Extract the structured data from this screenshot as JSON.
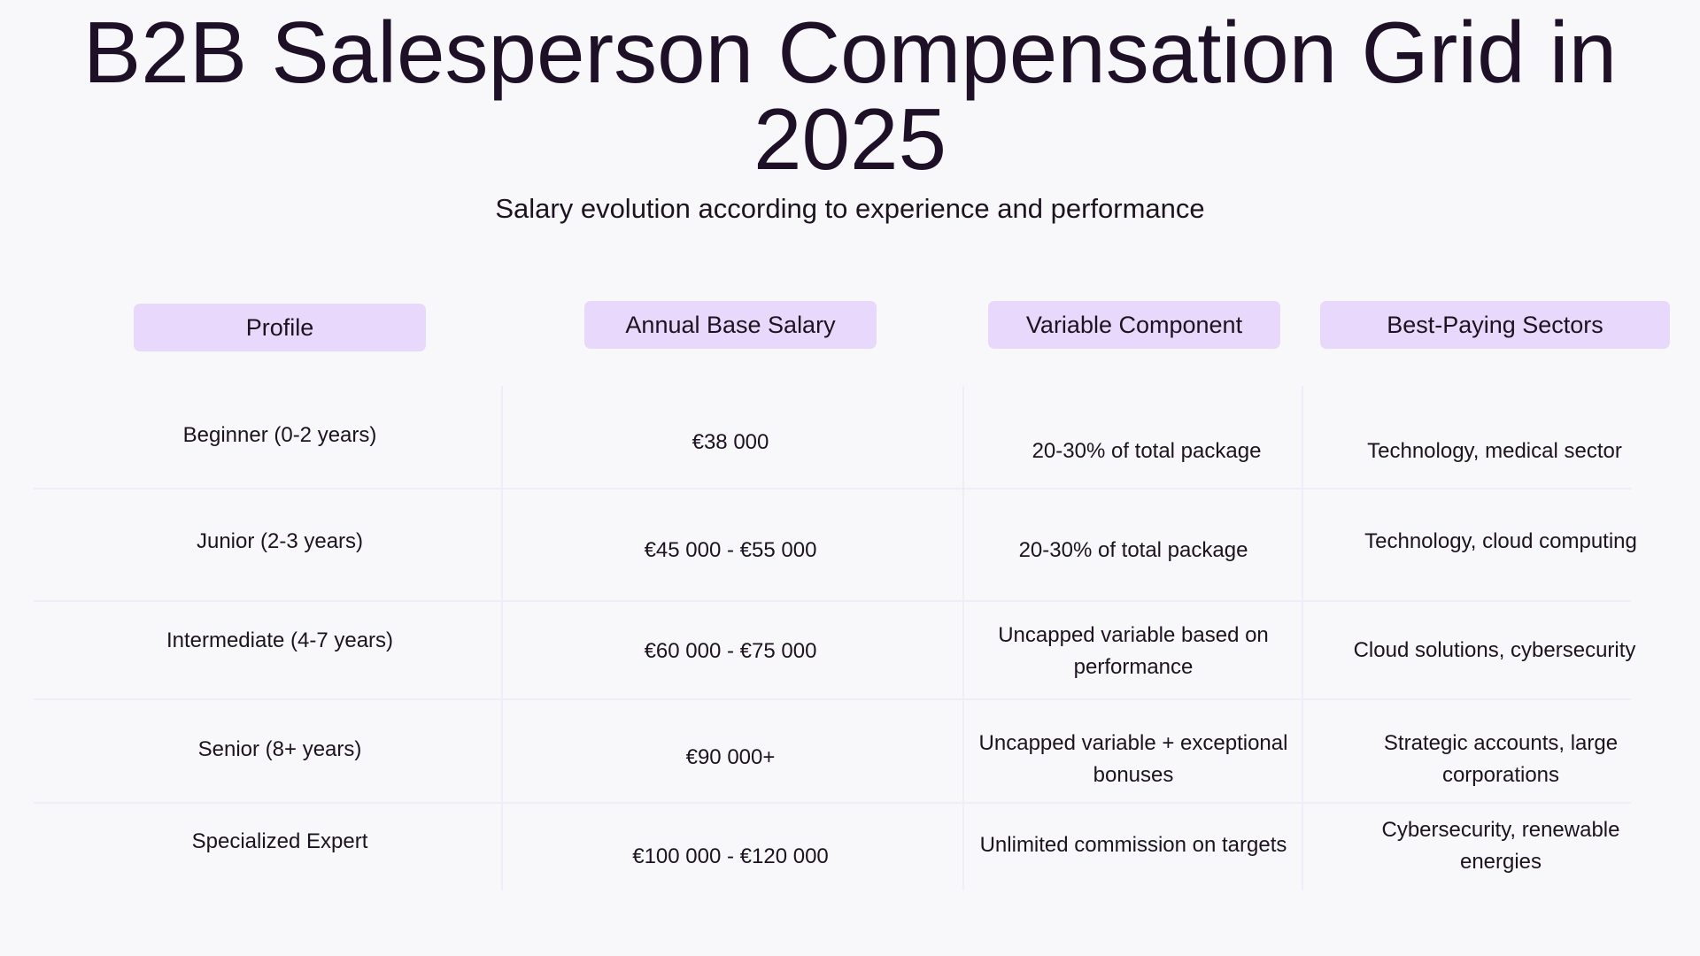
{
  "title": "B2B Salesperson Compensation Grid in 2025",
  "subtitle": "Salary evolution according to experience and performance",
  "headers": {
    "profile": "Profile",
    "salary": "Annual Base Salary",
    "variable": "Variable Component",
    "sectors": "Best-Paying Sectors"
  },
  "rows": [
    {
      "profile": "Beginner (0-2 years)",
      "salary": "€38 000",
      "variable": "20-30% of total package",
      "sectors": "Technology, medical sector"
    },
    {
      "profile": "Junior (2-3 years)",
      "salary": "€45 000 - €55 000",
      "variable": "20-30% of total package",
      "sectors": "Technology, cloud computing"
    },
    {
      "profile": "Intermediate (4-7 years)",
      "salary": "€60 000 - €75 000",
      "variable": "Uncapped variable based on performance",
      "sectors": "Cloud solutions, cybersecurity"
    },
    {
      "profile": "Senior (8+ years)",
      "salary": "€90 000+",
      "variable": "Uncapped variable + exceptional bonuses",
      "sectors": "Strategic accounts, large corporations"
    },
    {
      "profile": "Specialized Expert",
      "salary": "€100 000 - €120 000",
      "variable": "Unlimited commission on targets",
      "sectors": "Cybersecurity, renewable energies"
    }
  ],
  "colors": {
    "background": "#f8f8fb",
    "header_pill": "#e8d8fb",
    "text": "#1d1320",
    "grid_line": "#efedf7"
  }
}
